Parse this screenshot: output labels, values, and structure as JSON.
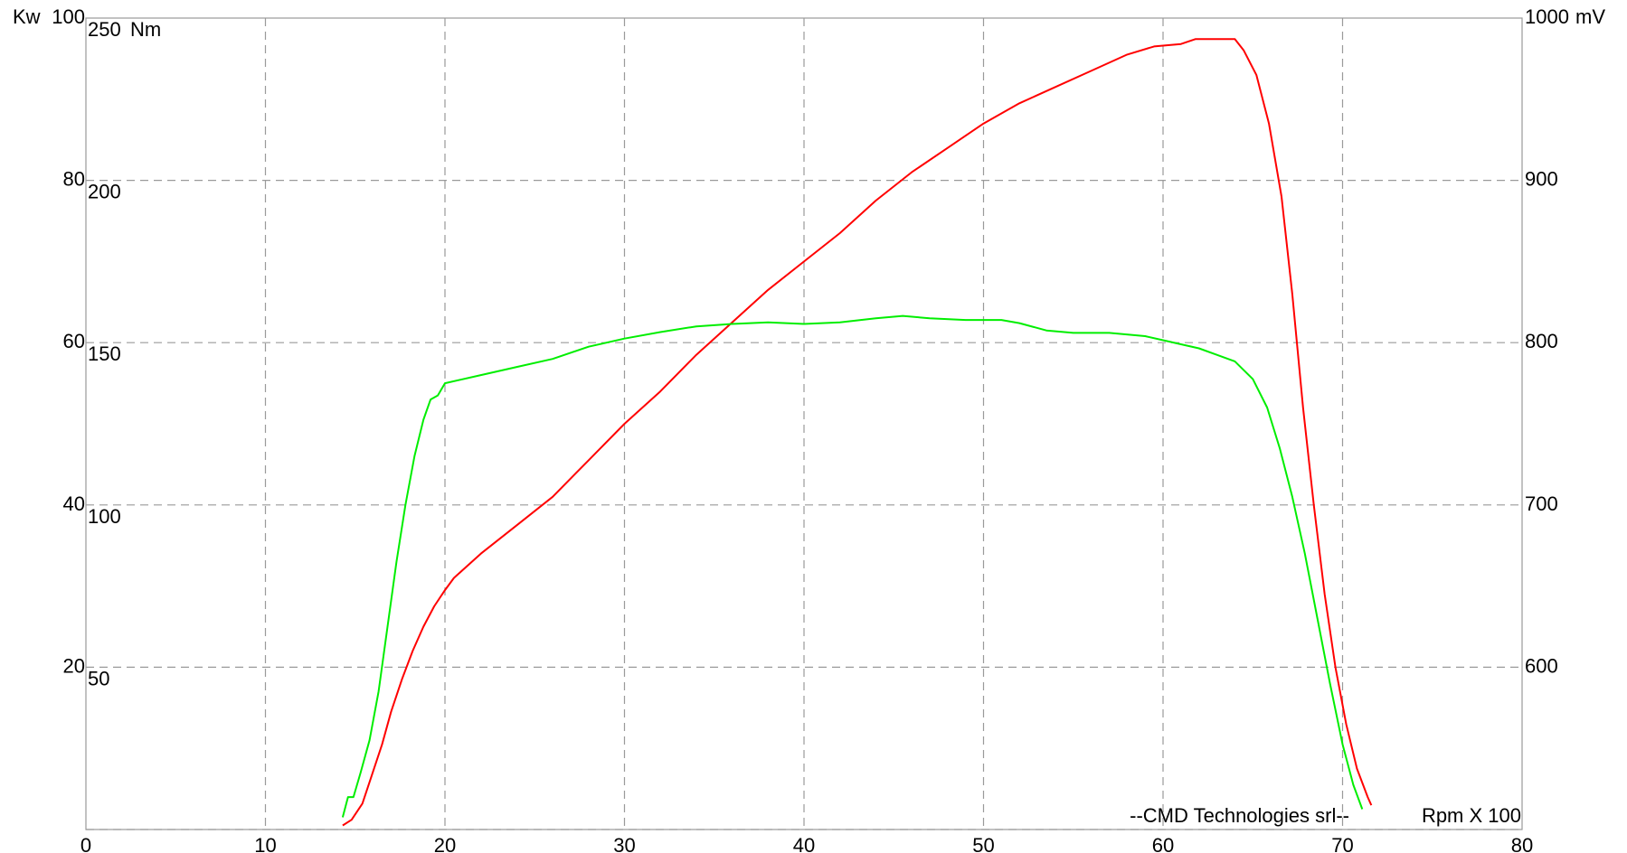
{
  "chart_data": {
    "type": "line",
    "x_axis": {
      "label": "Rpm X 100",
      "range": [
        0,
        80
      ],
      "ticks": [
        "0",
        "10",
        "20",
        "30",
        "40",
        "50",
        "60",
        "70",
        "80"
      ]
    },
    "y_axes": {
      "power": {
        "unit_label": "Kw",
        "range": [
          0,
          100
        ],
        "ticks": [
          "20",
          "40",
          "60",
          "80",
          "100"
        ]
      },
      "torque": {
        "unit_label": "Nm",
        "range": [
          0,
          250
        ],
        "ticks": [
          "50",
          "100",
          "150",
          "200",
          "250"
        ]
      },
      "voltage": {
        "unit_label": "mV",
        "range": [
          500,
          1000
        ],
        "ticks": [
          "600",
          "700",
          "800",
          "900",
          "1000"
        ]
      }
    },
    "grid": true,
    "watermark": "--CMD Technologies srl--",
    "colors": {
      "red_series": "#ff0000",
      "green_series": "#00ee00",
      "grid": "#9a9a9a"
    },
    "series": [
      {
        "color": "#ff0000",
        "axis": "power",
        "points": [
          [
            14.3,
            0.5
          ],
          [
            14.8,
            1.2
          ],
          [
            15.4,
            3.2
          ],
          [
            15.9,
            6.5
          ],
          [
            16.5,
            10.5
          ],
          [
            17.0,
            14.5
          ],
          [
            17.6,
            18.5
          ],
          [
            18.2,
            22.0
          ],
          [
            18.8,
            25.0
          ],
          [
            19.4,
            27.5
          ],
          [
            20.0,
            29.5
          ],
          [
            20.5,
            31.0
          ],
          [
            22.0,
            34.0
          ],
          [
            24.0,
            37.5
          ],
          [
            26.0,
            41.0
          ],
          [
            28.0,
            45.5
          ],
          [
            30.0,
            50.0
          ],
          [
            32.0,
            54.0
          ],
          [
            34.0,
            58.5
          ],
          [
            36.0,
            62.5
          ],
          [
            38.0,
            66.5
          ],
          [
            40.0,
            70.0
          ],
          [
            42.0,
            73.5
          ],
          [
            44.0,
            77.5
          ],
          [
            46.0,
            81.0
          ],
          [
            48.0,
            84.0
          ],
          [
            50.0,
            87.0
          ],
          [
            52.0,
            89.5
          ],
          [
            54.0,
            91.5
          ],
          [
            56.0,
            93.5
          ],
          [
            58.0,
            95.5
          ],
          [
            59.5,
            96.5
          ],
          [
            61.0,
            96.8
          ],
          [
            61.8,
            97.4
          ],
          [
            64.0,
            97.4
          ],
          [
            64.5,
            96.0
          ],
          [
            65.2,
            93.0
          ],
          [
            65.9,
            87.0
          ],
          [
            66.6,
            78.0
          ],
          [
            67.2,
            66.0
          ],
          [
            67.8,
            52.0
          ],
          [
            68.4,
            40.0
          ],
          [
            69.0,
            29.0
          ],
          [
            69.6,
            20.0
          ],
          [
            70.2,
            13.0
          ],
          [
            70.8,
            7.5
          ],
          [
            71.4,
            4.0
          ],
          [
            71.6,
            3.0
          ]
        ]
      },
      {
        "color": "#00ee00",
        "axis": "power",
        "points": [
          [
            14.3,
            1.5
          ],
          [
            14.6,
            4.0
          ],
          [
            14.9,
            4.0
          ],
          [
            15.3,
            7.0
          ],
          [
            15.8,
            11.0
          ],
          [
            16.3,
            17.0
          ],
          [
            16.8,
            25.0
          ],
          [
            17.3,
            33.0
          ],
          [
            17.8,
            40.0
          ],
          [
            18.3,
            46.0
          ],
          [
            18.8,
            50.5
          ],
          [
            19.2,
            53.0
          ],
          [
            19.6,
            53.5
          ],
          [
            20.0,
            55.0
          ],
          [
            22.0,
            56.0
          ],
          [
            24.0,
            57.0
          ],
          [
            26.0,
            58.0
          ],
          [
            28.0,
            59.5
          ],
          [
            30.0,
            60.5
          ],
          [
            32.0,
            61.3
          ],
          [
            34.0,
            62.0
          ],
          [
            36.0,
            62.3
          ],
          [
            38.0,
            62.5
          ],
          [
            40.0,
            62.3
          ],
          [
            42.0,
            62.5
          ],
          [
            44.0,
            63.0
          ],
          [
            45.5,
            63.3
          ],
          [
            47.0,
            63.0
          ],
          [
            49.0,
            62.8
          ],
          [
            51.0,
            62.8
          ],
          [
            52.0,
            62.4
          ],
          [
            53.5,
            61.5
          ],
          [
            55.0,
            61.2
          ],
          [
            57.0,
            61.2
          ],
          [
            59.0,
            60.8
          ],
          [
            60.0,
            60.3
          ],
          [
            61.0,
            59.8
          ],
          [
            62.0,
            59.3
          ],
          [
            63.0,
            58.5
          ],
          [
            64.0,
            57.7
          ],
          [
            65.0,
            55.5
          ],
          [
            65.8,
            52.0
          ],
          [
            66.5,
            47.0
          ],
          [
            67.2,
            41.0
          ],
          [
            67.9,
            34.0
          ],
          [
            68.6,
            26.0
          ],
          [
            69.3,
            18.0
          ],
          [
            70.0,
            10.5
          ],
          [
            70.6,
            5.5
          ],
          [
            71.1,
            2.5
          ]
        ]
      }
    ]
  }
}
